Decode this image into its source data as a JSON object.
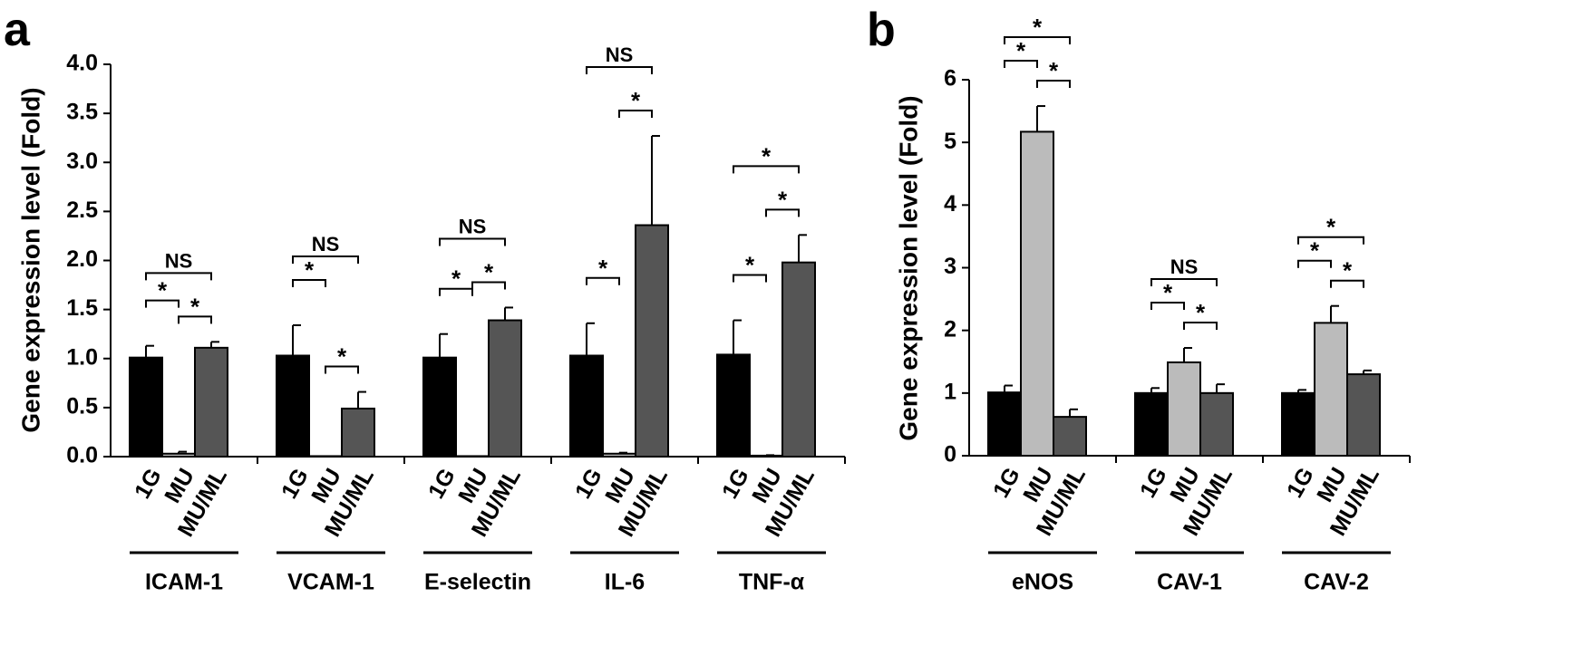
{
  "panels": [
    {
      "letter": "a"
    },
    {
      "letter": "b"
    }
  ],
  "colors": {
    "1G": "#000000",
    "MU": "#bbbbbb",
    "MU/ML": "#555555"
  },
  "chart_data": [
    {
      "type": "bar",
      "panel": "a",
      "ylabel": "Gene expression level (Fold)",
      "ylim": [
        0,
        4.0
      ],
      "yticks": [
        "0.0",
        "0.5",
        "1.0",
        "1.5",
        "2.0",
        "2.5",
        "3.0",
        "3.5",
        "4.0"
      ],
      "conditions": [
        "1G",
        "MU",
        "MU/ML"
      ],
      "groups": [
        {
          "name": "ICAM-1",
          "values": [
            1.01,
            0.03,
            1.11
          ],
          "errors": [
            0.12,
            0.02,
            0.06
          ],
          "comparisons": [
            {
              "pair": [
                0,
                1
              ],
              "label": "*"
            },
            {
              "pair": [
                1,
                2
              ],
              "label": "*"
            },
            {
              "pair": [
                0,
                2
              ],
              "label": "NS"
            }
          ]
        },
        {
          "name": "VCAM-1",
          "values": [
            1.03,
            0.005,
            0.49
          ],
          "errors": [
            0.31,
            0.0,
            0.17
          ],
          "comparisons": [
            {
              "pair": [
                0,
                1
              ],
              "label": "*"
            },
            {
              "pair": [
                1,
                2
              ],
              "label": "*"
            },
            {
              "pair": [
                0,
                2
              ],
              "label": "NS"
            }
          ]
        },
        {
          "name": "E-selectin",
          "values": [
            1.01,
            0.005,
            1.39
          ],
          "errors": [
            0.24,
            0.0,
            0.13
          ],
          "comparisons": [
            {
              "pair": [
                0,
                1
              ],
              "label": "*"
            },
            {
              "pair": [
                1,
                2
              ],
              "label": "*"
            },
            {
              "pair": [
                0,
                2
              ],
              "label": "NS"
            }
          ]
        },
        {
          "name": "IL-6",
          "values": [
            1.03,
            0.03,
            2.36
          ],
          "errors": [
            0.33,
            0.01,
            0.91
          ],
          "comparisons": [
            {
              "pair": [
                0,
                1
              ],
              "label": "*"
            },
            {
              "pair": [
                1,
                2
              ],
              "label": "*"
            },
            {
              "pair": [
                0,
                2
              ],
              "label": "NS"
            }
          ]
        },
        {
          "name": "TNF-α",
          "values": [
            1.04,
            0.01,
            1.98
          ],
          "errors": [
            0.35,
            0.005,
            0.28
          ],
          "comparisons": [
            {
              "pair": [
                0,
                1
              ],
              "label": "*"
            },
            {
              "pair": [
                1,
                2
              ],
              "label": "*"
            },
            {
              "pair": [
                0,
                2
              ],
              "label": "*"
            }
          ]
        }
      ]
    },
    {
      "type": "bar",
      "panel": "b",
      "ylabel": "Gene expression level (Fold)",
      "ylim": [
        0,
        6
      ],
      "yticks": [
        "0",
        "1",
        "2",
        "3",
        "4",
        "5",
        "6"
      ],
      "conditions": [
        "1G",
        "MU",
        "MU/ML"
      ],
      "groups": [
        {
          "name": "eNOS",
          "values": [
            1.01,
            5.17,
            0.62
          ],
          "errors": [
            0.11,
            0.41,
            0.12
          ],
          "comparisons": [
            {
              "pair": [
                0,
                1
              ],
              "label": "*"
            },
            {
              "pair": [
                1,
                2
              ],
              "label": "*"
            },
            {
              "pair": [
                0,
                2
              ],
              "label": "*"
            }
          ]
        },
        {
          "name": "CAV-1",
          "values": [
            1.0,
            1.49,
            1.0
          ],
          "errors": [
            0.08,
            0.23,
            0.14
          ],
          "comparisons": [
            {
              "pair": [
                0,
                1
              ],
              "label": "*"
            },
            {
              "pair": [
                1,
                2
              ],
              "label": "*"
            },
            {
              "pair": [
                0,
                2
              ],
              "label": "NS"
            }
          ]
        },
        {
          "name": "CAV-2",
          "values": [
            1.0,
            2.12,
            1.3
          ],
          "errors": [
            0.05,
            0.27,
            0.06
          ],
          "comparisons": [
            {
              "pair": [
                0,
                1
              ],
              "label": "*"
            },
            {
              "pair": [
                1,
                2
              ],
              "label": "*"
            },
            {
              "pair": [
                0,
                2
              ],
              "label": "*"
            }
          ]
        }
      ]
    }
  ]
}
